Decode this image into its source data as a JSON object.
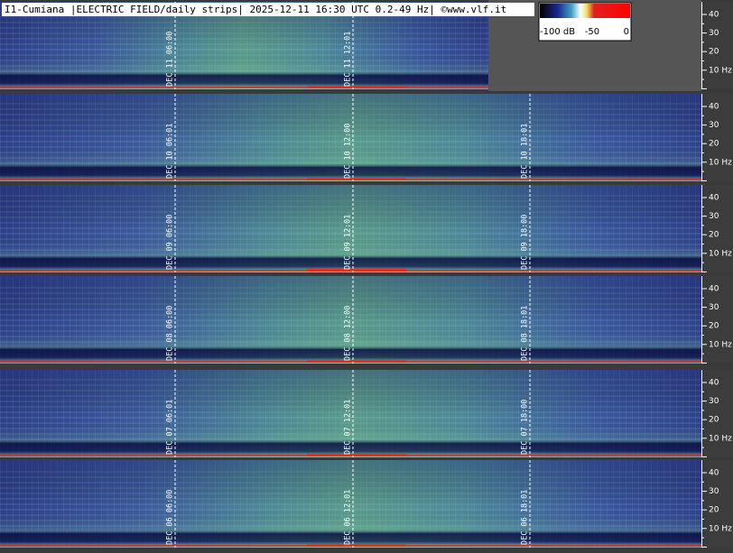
{
  "header": {
    "title": "I1-Cumiana |ELECTRIC FIELD/daily strips| 2025-12-11 16:30 UTC 0.2-49 Hz| ©www.vlf.it"
  },
  "legend": {
    "labels": [
      "-100 dB",
      "-50",
      "0"
    ]
  },
  "frequency_labels": [
    "40",
    "30",
    "20",
    "10 Hz"
  ],
  "strips": [
    {
      "times": [
        "DEC 11 06:00",
        "DEC 11 12:01"
      ]
    },
    {
      "times": [
        "DEC 10 06:01",
        "DEC 10 12:00",
        "DEC 10 18:01"
      ]
    },
    {
      "times": [
        "DEC 09 06:00",
        "DEC 09 12:01",
        "DEC 09 18:00"
      ]
    },
    {
      "times": [
        "DEC 08 06:00",
        "DEC 08 12:00",
        "DEC 08 18:01"
      ]
    },
    {
      "times": [
        "DEC 07 06:01",
        "DEC 07 12:01",
        "DEC 07 18:00"
      ]
    },
    {
      "times": [
        "DEC 06 06:00",
        "DEC 06 12:01",
        "DEC 06 18:01"
      ]
    }
  ]
}
